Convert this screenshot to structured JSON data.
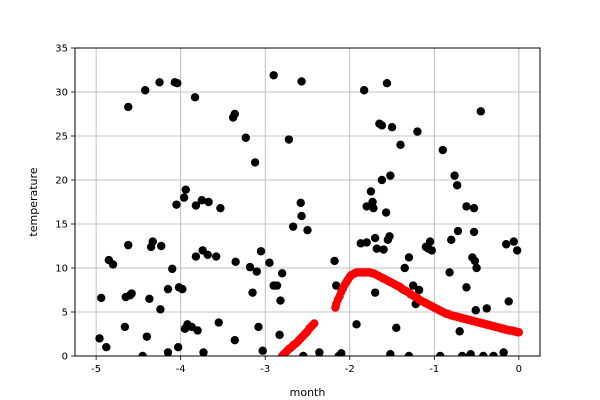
{
  "chart_data": {
    "type": "scatter",
    "xlabel": "month",
    "ylabel": "temperature",
    "xlim": [
      -5.25,
      0.25
    ],
    "ylim": [
      0,
      35
    ],
    "xticks": [
      -5,
      -4,
      -3,
      -2,
      -1,
      0
    ],
    "yticks": [
      0,
      5,
      10,
      15,
      20,
      25,
      30,
      35
    ],
    "grid": true,
    "colors": {
      "series_black": "#000000",
      "series_red": "#ff0000",
      "grid": "#b0b0b0"
    },
    "series": [
      {
        "color": "#000000",
        "points": [
          [
            -4.96,
            2.0
          ],
          [
            -4.94,
            6.6
          ],
          [
            -4.88,
            1.0
          ],
          [
            -4.85,
            10.9
          ],
          [
            -4.8,
            10.4
          ],
          [
            -4.66,
            3.3
          ],
          [
            -4.65,
            6.7
          ],
          [
            -4.62,
            28.3
          ],
          [
            -4.62,
            12.6
          ],
          [
            -4.6,
            6.9
          ],
          [
            -4.58,
            7.1
          ],
          [
            -4.45,
            0.0
          ],
          [
            -4.42,
            30.2
          ],
          [
            -4.4,
            2.2
          ],
          [
            -4.37,
            6.5
          ],
          [
            -4.35,
            12.4
          ],
          [
            -4.33,
            13.0
          ],
          [
            -4.25,
            31.1
          ],
          [
            -4.23,
            12.5
          ],
          [
            -4.24,
            5.3
          ],
          [
            -4.15,
            7.6
          ],
          [
            -4.15,
            0.4
          ],
          [
            -4.1,
            9.9
          ],
          [
            -4.07,
            31.1
          ],
          [
            -4.04,
            31.0
          ],
          [
            -4.05,
            17.2
          ],
          [
            -4.03,
            1.0
          ],
          [
            -4.02,
            7.8
          ],
          [
            -3.98,
            7.6
          ],
          [
            -3.96,
            18.0
          ],
          [
            -3.95,
            3.1
          ],
          [
            -3.94,
            18.9
          ],
          [
            -3.92,
            3.6
          ],
          [
            -3.87,
            3.3
          ],
          [
            -3.83,
            29.4
          ],
          [
            -3.82,
            11.3
          ],
          [
            -3.82,
            17.1
          ],
          [
            -3.8,
            2.9
          ],
          [
            -3.75,
            17.7
          ],
          [
            -3.74,
            12.0
          ],
          [
            -3.73,
            0.4
          ],
          [
            -3.68,
            11.5
          ],
          [
            -3.67,
            17.5
          ],
          [
            -3.58,
            11.3
          ],
          [
            -3.55,
            3.8
          ],
          [
            -3.53,
            16.8
          ],
          [
            -3.38,
            27.1
          ],
          [
            -3.36,
            27.5
          ],
          [
            -3.35,
            10.7
          ],
          [
            -3.36,
            1.8
          ],
          [
            -3.23,
            24.8
          ],
          [
            -3.18,
            10.1
          ],
          [
            -3.15,
            7.2
          ],
          [
            -3.12,
            22.0
          ],
          [
            -3.1,
            9.6
          ],
          [
            -3.08,
            3.3
          ],
          [
            -3.05,
            11.9
          ],
          [
            -3.03,
            0.6
          ],
          [
            -2.95,
            10.6
          ],
          [
            -2.9,
            31.9
          ],
          [
            -2.9,
            8.0
          ],
          [
            -2.86,
            8.0
          ],
          [
            -2.82,
            6.3
          ],
          [
            -2.8,
            9.4
          ],
          [
            -2.83,
            2.4
          ],
          [
            -2.72,
            24.6
          ],
          [
            -2.67,
            14.7
          ],
          [
            -2.58,
            17.4
          ],
          [
            -2.57,
            31.2
          ],
          [
            -2.57,
            15.9
          ],
          [
            -2.55,
            0.0
          ],
          [
            -2.5,
            14.3
          ],
          [
            -2.36,
            0.4
          ],
          [
            -2.18,
            10.8
          ],
          [
            -2.16,
            8.0
          ],
          [
            -2.13,
            0.0
          ],
          [
            -2.1,
            0.3
          ],
          [
            -1.92,
            3.6
          ],
          [
            -1.87,
            12.8
          ],
          [
            -1.83,
            30.2
          ],
          [
            -1.8,
            12.9
          ],
          [
            -1.8,
            17.0
          ],
          [
            -1.75,
            18.7
          ],
          [
            -1.73,
            17.5
          ],
          [
            -1.72,
            16.8
          ],
          [
            -1.7,
            13.4
          ],
          [
            -1.7,
            7.2
          ],
          [
            -1.68,
            12.2
          ],
          [
            -1.65,
            26.4
          ],
          [
            -1.62,
            26.2
          ],
          [
            -1.62,
            20.0
          ],
          [
            -1.6,
            12.1
          ],
          [
            -1.57,
            16.3
          ],
          [
            -1.56,
            31.0
          ],
          [
            -1.55,
            13.2
          ],
          [
            -1.53,
            13.6
          ],
          [
            -1.52,
            20.5
          ],
          [
            -1.52,
            0.2
          ],
          [
            -1.5,
            26.0
          ],
          [
            -1.45,
            3.2
          ],
          [
            -1.4,
            24.0
          ],
          [
            -1.35,
            10.0
          ],
          [
            -1.3,
            11.2
          ],
          [
            -1.3,
            0.0
          ],
          [
            -1.25,
            8.0
          ],
          [
            -1.22,
            5.9
          ],
          [
            -1.2,
            25.5
          ],
          [
            -1.18,
            7.5
          ],
          [
            -1.1,
            12.4
          ],
          [
            -1.07,
            12.2
          ],
          [
            -1.05,
            13.0
          ],
          [
            -1.03,
            12.0
          ],
          [
            -0.93,
            0.0
          ],
          [
            -0.9,
            23.4
          ],
          [
            -0.82,
            9.5
          ],
          [
            -0.8,
            13.2
          ],
          [
            -0.76,
            20.5
          ],
          [
            -0.73,
            19.4
          ],
          [
            -0.72,
            14.2
          ],
          [
            -0.7,
            2.8
          ],
          [
            -0.67,
            0.0
          ],
          [
            -0.62,
            17.0
          ],
          [
            -0.62,
            7.8
          ],
          [
            -0.58,
            0.0
          ],
          [
            -0.57,
            0.2
          ],
          [
            -0.55,
            11.2
          ],
          [
            -0.53,
            16.8
          ],
          [
            -0.53,
            14.1
          ],
          [
            -0.52,
            10.8
          ],
          [
            -0.5,
            10.0
          ],
          [
            -0.51,
            5.2
          ],
          [
            -0.45,
            27.8
          ],
          [
            -0.42,
            0.0
          ],
          [
            -0.38,
            5.4
          ],
          [
            -0.3,
            0.0
          ],
          [
            -0.18,
            0.4
          ],
          [
            -0.15,
            12.7
          ],
          [
            -0.12,
            6.2
          ],
          [
            -0.06,
            13.0
          ],
          [
            -0.02,
            12.0
          ]
        ]
      },
      {
        "color": "#ff0000",
        "points": [
          [
            -2.8,
            0.0
          ],
          [
            -2.78,
            0.2
          ],
          [
            -2.76,
            0.4
          ],
          [
            -2.74,
            0.6
          ],
          [
            -2.72,
            0.8
          ],
          [
            -2.7,
            0.9
          ],
          [
            -2.68,
            1.1
          ],
          [
            -2.66,
            1.3
          ],
          [
            -2.64,
            1.4
          ],
          [
            -2.62,
            1.6
          ],
          [
            -2.6,
            1.8
          ],
          [
            -2.58,
            2.0
          ],
          [
            -2.56,
            2.2
          ],
          [
            -2.54,
            2.4
          ],
          [
            -2.52,
            2.6
          ],
          [
            -2.5,
            2.8
          ],
          [
            -2.48,
            3.1
          ],
          [
            -2.46,
            3.3
          ],
          [
            -2.44,
            3.5
          ],
          [
            -2.42,
            3.7
          ],
          [
            -2.17,
            5.5
          ],
          [
            -2.16,
            5.9
          ],
          [
            -2.14,
            6.4
          ],
          [
            -2.12,
            6.8
          ],
          [
            -2.1,
            7.3
          ],
          [
            -2.08,
            7.7
          ],
          [
            -2.06,
            8.1
          ],
          [
            -2.04,
            8.4
          ],
          [
            -2.02,
            8.7
          ],
          [
            -2.0,
            9.0
          ],
          [
            -1.98,
            9.2
          ],
          [
            -1.96,
            9.3
          ],
          [
            -1.94,
            9.4
          ],
          [
            -1.92,
            9.5
          ],
          [
            -1.9,
            9.5
          ],
          [
            -1.88,
            9.5
          ],
          [
            -1.86,
            9.5
          ],
          [
            -1.84,
            9.5
          ],
          [
            -1.82,
            9.5
          ],
          [
            -1.8,
            9.5
          ],
          [
            -1.78,
            9.5
          ],
          [
            -1.76,
            9.5
          ],
          [
            -1.74,
            9.4
          ],
          [
            -1.72,
            9.4
          ],
          [
            -1.7,
            9.3
          ],
          [
            -1.68,
            9.2
          ],
          [
            -1.66,
            9.1
          ],
          [
            -1.64,
            9.0
          ],
          [
            -1.62,
            8.9
          ],
          [
            -1.6,
            8.8
          ],
          [
            -1.58,
            8.7
          ],
          [
            -1.56,
            8.6
          ],
          [
            -1.54,
            8.5
          ],
          [
            -1.52,
            8.4
          ],
          [
            -1.5,
            8.3
          ],
          [
            -1.48,
            8.2
          ],
          [
            -1.46,
            8.1
          ],
          [
            -1.44,
            8.0
          ],
          [
            -1.42,
            7.9
          ],
          [
            -1.4,
            7.8
          ],
          [
            -1.38,
            7.6
          ],
          [
            -1.36,
            7.5
          ],
          [
            -1.34,
            7.4
          ],
          [
            -1.32,
            7.3
          ],
          [
            -1.3,
            7.2
          ],
          [
            -1.28,
            7.0
          ],
          [
            -1.26,
            6.9
          ],
          [
            -1.24,
            6.8
          ],
          [
            -1.22,
            6.7
          ],
          [
            -1.2,
            6.6
          ],
          [
            -1.18,
            6.4
          ],
          [
            -1.16,
            6.3
          ],
          [
            -1.14,
            6.2
          ],
          [
            -1.12,
            6.1
          ],
          [
            -1.1,
            6.0
          ],
          [
            -1.08,
            5.9
          ],
          [
            -1.06,
            5.8
          ],
          [
            -1.04,
            5.7
          ],
          [
            -1.02,
            5.6
          ],
          [
            -1.0,
            5.5
          ],
          [
            -0.98,
            5.4
          ],
          [
            -0.96,
            5.3
          ],
          [
            -0.94,
            5.2
          ],
          [
            -0.92,
            5.1
          ],
          [
            -0.9,
            5.0
          ],
          [
            -0.88,
            4.9
          ],
          [
            -0.86,
            4.8
          ],
          [
            -0.84,
            4.8
          ],
          [
            -0.82,
            4.7
          ],
          [
            -0.8,
            4.6
          ],
          [
            -0.78,
            4.6
          ],
          [
            -0.76,
            4.5
          ],
          [
            -0.74,
            4.5
          ],
          [
            -0.72,
            4.4
          ],
          [
            -0.7,
            4.4
          ],
          [
            -0.68,
            4.3
          ],
          [
            -0.66,
            4.3
          ],
          [
            -0.64,
            4.2
          ],
          [
            -0.62,
            4.2
          ],
          [
            -0.6,
            4.1
          ],
          [
            -0.58,
            4.1
          ],
          [
            -0.56,
            4.0
          ],
          [
            -0.54,
            4.0
          ],
          [
            -0.52,
            3.9
          ],
          [
            -0.5,
            3.9
          ],
          [
            -0.48,
            3.8
          ],
          [
            -0.46,
            3.8
          ],
          [
            -0.44,
            3.7
          ],
          [
            -0.42,
            3.7
          ],
          [
            -0.4,
            3.6
          ],
          [
            -0.38,
            3.6
          ],
          [
            -0.36,
            3.5
          ],
          [
            -0.34,
            3.5
          ],
          [
            -0.32,
            3.4
          ],
          [
            -0.3,
            3.4
          ],
          [
            -0.28,
            3.3
          ],
          [
            -0.26,
            3.3
          ],
          [
            -0.24,
            3.2
          ],
          [
            -0.22,
            3.2
          ],
          [
            -0.2,
            3.1
          ],
          [
            -0.18,
            3.1
          ],
          [
            -0.16,
            3.0
          ],
          [
            -0.14,
            3.0
          ],
          [
            -0.12,
            2.9
          ],
          [
            -0.1,
            2.9
          ],
          [
            -0.08,
            2.9
          ],
          [
            -0.06,
            2.8
          ],
          [
            -0.04,
            2.8
          ],
          [
            -0.02,
            2.7
          ],
          [
            0.0,
            2.7
          ]
        ]
      }
    ]
  }
}
